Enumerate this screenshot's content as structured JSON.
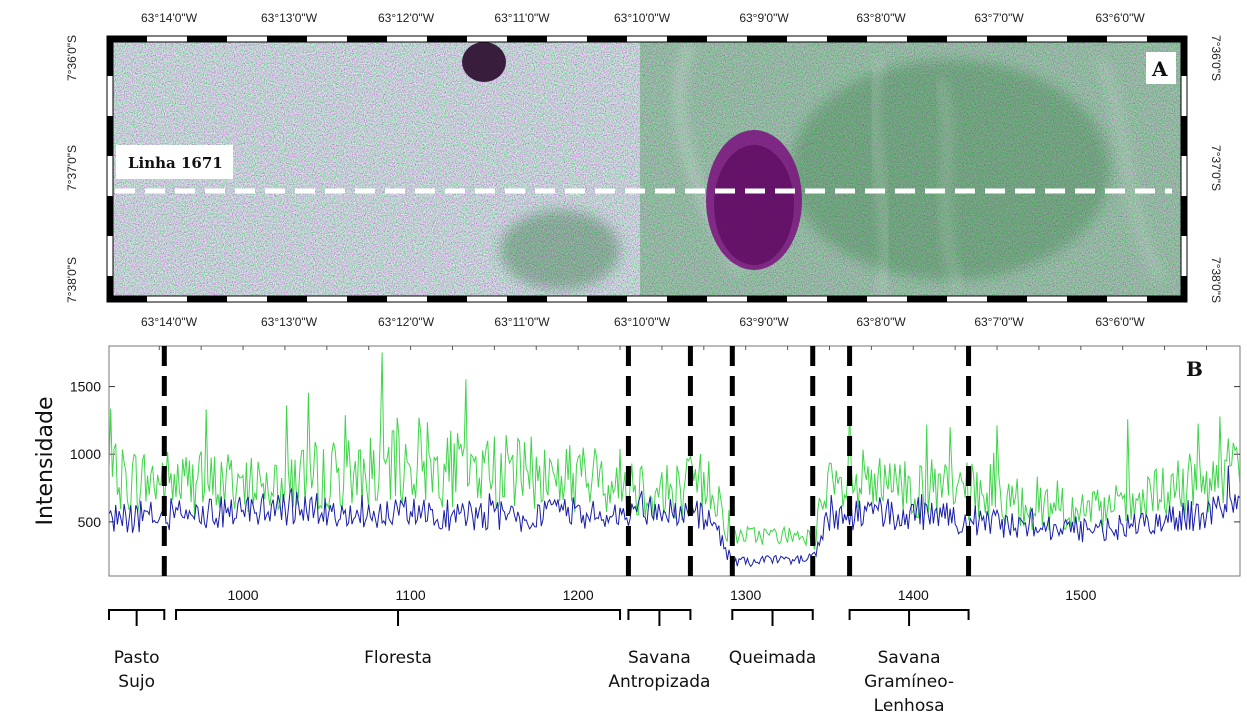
{
  "panel_a": {
    "label": "A",
    "line_label": "Linha 1671",
    "lon_ticks": [
      "63°14'0\"W",
      "63°13'0\"W",
      "63°12'0\"W",
      "63°11'0\"W",
      "63°10'0\"W",
      "63°9'0\"W",
      "63°8'0\"W",
      "63°7'0\"W",
      "63°6'0\"W"
    ],
    "lat_ticks": [
      "7°36'0\"S",
      "7°37'0\"S",
      "7°38'0\"S"
    ],
    "colors": {
      "green": "#5fd36a",
      "magenta": "#c24fc6",
      "dark_patch": "#3a0a3c",
      "line": "#ffffff"
    }
  },
  "panel_b": {
    "label": "B",
    "ylabel": "Intensidade",
    "zones": [
      {
        "lines": [
          "Pasto",
          "Sujo"
        ]
      },
      {
        "lines": [
          "Floresta"
        ]
      },
      {
        "lines": [
          "Savana",
          "Antropizada"
        ]
      },
      {
        "lines": [
          "Queimada"
        ]
      },
      {
        "lines": [
          "Savana",
          "Gramíneo-",
          "Lenhosa"
        ]
      }
    ]
  },
  "chart_data": {
    "type": "line",
    "title": "",
    "xlabel": "",
    "ylabel": "Intensidade",
    "xlim": [
      920,
      1595
    ],
    "ylim": [
      100,
      1800
    ],
    "xticks": [
      1000,
      1100,
      1200,
      1300,
      1400,
      1500
    ],
    "yticks": [
      500,
      1000,
      1500
    ],
    "boundaries": [
      953,
      1230,
      1267,
      1292,
      1340,
      1362,
      1433
    ],
    "zone_ranges": [
      [
        920,
        953
      ],
      [
        960,
        1225
      ],
      [
        1230,
        1267
      ],
      [
        1292,
        1340
      ],
      [
        1362,
        1433
      ]
    ],
    "x_start": 920,
    "x_step": 1,
    "series": [
      {
        "color": "#3fd44a",
        "profile": [
          [
            920,
            820
          ],
          [
            950,
            800
          ],
          [
            980,
            780
          ],
          [
            1050,
            850
          ],
          [
            1100,
            900
          ],
          [
            1150,
            880
          ],
          [
            1200,
            830
          ],
          [
            1228,
            800
          ],
          [
            1250,
            720
          ],
          [
            1280,
            800
          ],
          [
            1292,
            400
          ],
          [
            1340,
            400
          ],
          [
            1350,
            720
          ],
          [
            1380,
            750
          ],
          [
            1430,
            720
          ],
          [
            1470,
            640
          ],
          [
            1510,
            560
          ],
          [
            1540,
            650
          ],
          [
            1570,
            800
          ],
          [
            1595,
            850
          ]
        ]
      },
      {
        "color": "#1a1ea8",
        "profile": [
          [
            920,
            520
          ],
          [
            960,
            560
          ],
          [
            1000,
            580
          ],
          [
            1050,
            600
          ],
          [
            1100,
            560
          ],
          [
            1150,
            540
          ],
          [
            1200,
            560
          ],
          [
            1228,
            560
          ],
          [
            1250,
            580
          ],
          [
            1280,
            520
          ],
          [
            1292,
            200
          ],
          [
            1340,
            230
          ],
          [
            1350,
            540
          ],
          [
            1380,
            560
          ],
          [
            1430,
            520
          ],
          [
            1470,
            470
          ],
          [
            1510,
            440
          ],
          [
            1540,
            480
          ],
          [
            1570,
            560
          ],
          [
            1595,
            600
          ]
        ]
      }
    ]
  }
}
